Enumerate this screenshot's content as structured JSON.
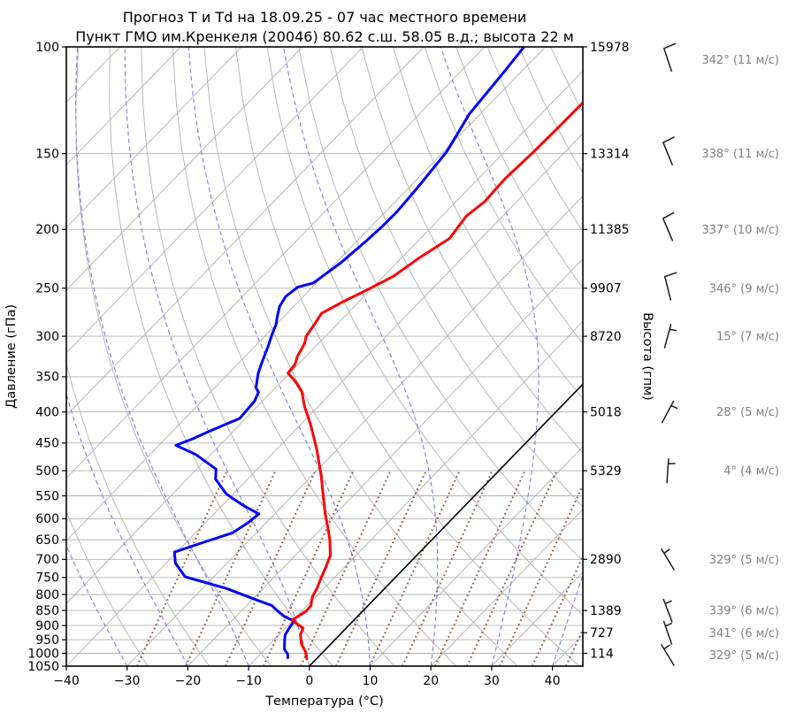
{
  "title": {
    "line1": "Прогноз Т и Td на 18.09.25 - 07 час местного времени",
    "line2": "Пункт ГМО им.Кренкеля (20046) 80.62 с.ш. 58.05 в.д.; высота 22 м"
  },
  "axes": {
    "x": {
      "label": "Температура (°C)",
      "min": -40,
      "max": 45,
      "ticks": [
        {
          "v": -40,
          "label": "−40"
        },
        {
          "v": -30,
          "label": "−30"
        },
        {
          "v": -20,
          "label": "−20"
        },
        {
          "v": -10,
          "label": "−10"
        },
        {
          "v": 0,
          "label": "0"
        },
        {
          "v": 10,
          "label": "10"
        },
        {
          "v": 20,
          "label": "20"
        },
        {
          "v": 30,
          "label": "30"
        },
        {
          "v": 40,
          "label": "40"
        }
      ]
    },
    "y_left": {
      "label": "Давление (гПа)",
      "ticks": [
        100,
        150,
        200,
        250,
        300,
        350,
        400,
        450,
        500,
        550,
        600,
        650,
        700,
        750,
        800,
        850,
        900,
        950,
        1000,
        1050
      ]
    },
    "y_right": {
      "label": "Высота (гпм)"
    }
  },
  "chart_data": {
    "type": "skewt-log-p",
    "pressure_range_hpa": [
      100,
      1050
    ],
    "temperature_range_c": [
      -40,
      45
    ],
    "skew": "isotherms slanted 45deg up-right",
    "temperature_profile": [
      [
        122,
        -44.9
      ],
      [
        135,
        -45.0
      ],
      [
        150,
        -45.2
      ],
      [
        165,
        -45.6
      ],
      [
        180,
        -45.3
      ],
      [
        190,
        -46.0
      ],
      [
        207,
        -45.2
      ],
      [
        223,
        -47.1
      ],
      [
        239,
        -48.4
      ],
      [
        253,
        -50.8
      ],
      [
        263,
        -52.6
      ],
      [
        275,
        -54.3
      ],
      [
        285,
        -53.8
      ],
      [
        300,
        -53.2
      ],
      [
        308,
        -52.3
      ],
      [
        324,
        -51.4
      ],
      [
        334,
        -50.5
      ],
      [
        345,
        -50.3
      ],
      [
        355,
        -48.0
      ],
      [
        370,
        -45.1
      ],
      [
        392,
        -42.2
      ],
      [
        420,
        -38.3
      ],
      [
        460,
        -33.5
      ],
      [
        509,
        -28.5
      ],
      [
        556,
        -24.4
      ],
      [
        589,
        -21.7
      ],
      [
        620,
        -19.1
      ],
      [
        650,
        -16.8
      ],
      [
        690,
        -14.2
      ],
      [
        721,
        -13.1
      ],
      [
        753,
        -12.1
      ],
      [
        780,
        -11.2
      ],
      [
        806,
        -10.6
      ],
      [
        821,
        -10.0
      ],
      [
        834,
        -9.4
      ],
      [
        852,
        -9.3
      ],
      [
        882,
        -10.2
      ],
      [
        909,
        -7.1
      ],
      [
        932,
        -6.5
      ],
      [
        966,
        -4.8
      ],
      [
        993,
        -3.0
      ],
      [
        1021,
        -1.6
      ]
    ],
    "dewpoint_profile": [
      [
        100,
        -63.5
      ],
      [
        110,
        -62.8
      ],
      [
        129,
        -61.8
      ],
      [
        149,
        -59.5
      ],
      [
        170,
        -58.6
      ],
      [
        187,
        -58.1
      ],
      [
        198,
        -58.2
      ],
      [
        209,
        -58.5
      ],
      [
        227,
        -59.2
      ],
      [
        245,
        -60.5
      ],
      [
        249,
        -62.4
      ],
      [
        258,
        -62.9
      ],
      [
        268,
        -62.3
      ],
      [
        279,
        -61.0
      ],
      [
        287,
        -60.0
      ],
      [
        299,
        -59.0
      ],
      [
        312,
        -57.8
      ],
      [
        330,
        -56.4
      ],
      [
        345,
        -55.2
      ],
      [
        365,
        -53.2
      ],
      [
        371,
        -52.1
      ],
      [
        384,
        -51.3
      ],
      [
        410,
        -51.0
      ],
      [
        430,
        -53.9
      ],
      [
        443,
        -55.5
      ],
      [
        454,
        -57.2
      ],
      [
        470,
        -52.5
      ],
      [
        497,
        -46.8
      ],
      [
        516,
        -45.3
      ],
      [
        545,
        -41.3
      ],
      [
        557,
        -39.1
      ],
      [
        572,
        -36.2
      ],
      [
        589,
        -32.6
      ],
      [
        610,
        -33.0
      ],
      [
        633,
        -33.9
      ],
      [
        655,
        -37.0
      ],
      [
        681,
        -40.4
      ],
      [
        710,
        -38.5
      ],
      [
        748,
        -34.7
      ],
      [
        782,
        -26.0
      ],
      [
        817,
        -19.2
      ],
      [
        834,
        -15.9
      ],
      [
        852,
        -14.0
      ],
      [
        870,
        -12.0
      ],
      [
        885,
        -9.7
      ],
      [
        909,
        -9.4
      ],
      [
        932,
        -9.0
      ],
      [
        952,
        -8.2
      ],
      [
        985,
        -6.8
      ],
      [
        1003,
        -5.5
      ],
      [
        1017,
        -4.9
      ]
    ],
    "winds": [
      {
        "p": 105,
        "dir": 342,
        "speed": 11,
        "label": "342° (11 м/с)"
      },
      {
        "p": 150,
        "dir": 338,
        "speed": 11,
        "label": "338° (11 м/с)"
      },
      {
        "p": 200,
        "dir": 337,
        "speed": 10,
        "label": "337° (10 м/с)"
      },
      {
        "p": 250,
        "dir": 346,
        "speed": 9,
        "label": "346° (9 м/с)"
      },
      {
        "p": 300,
        "dir": 15,
        "speed": 7,
        "label": "15° (7 м/с)"
      },
      {
        "p": 400,
        "dir": 28,
        "speed": 5,
        "label": "28° (5 м/с)"
      },
      {
        "p": 500,
        "dir": 4,
        "speed": 4,
        "label": "4° (4 м/с)"
      },
      {
        "p": 700,
        "dir": 329,
        "speed": 5,
        "label": "329° (5 м/с)"
      },
      {
        "p": 850,
        "dir": 339,
        "speed": 6,
        "label": "339° (6 м/с)"
      },
      {
        "p": 925,
        "dir": 341,
        "speed": 6,
        "label": "341° (6 м/с)"
      },
      {
        "p": 1007,
        "dir": 329,
        "speed": 5,
        "label": "329° (5 м/с)"
      }
    ],
    "heights": [
      {
        "p": 100,
        "label": "15978"
      },
      {
        "p": 150,
        "label": "13314"
      },
      {
        "p": 200,
        "label": "11385"
      },
      {
        "p": 250,
        "label": "9907"
      },
      {
        "p": 300,
        "label": "8720"
      },
      {
        "p": 400,
        "label": "5018"
      },
      {
        "p": 500,
        "label": "5329"
      },
      {
        "p": 700,
        "label": "2890"
      },
      {
        "p": 850,
        "label": "1389"
      },
      {
        "p": 925,
        "label": "727"
      },
      {
        "p": 1000,
        "label": "114"
      }
    ],
    "grid": {
      "isobar_step_hpa": 50,
      "isotherm_step_c": 10,
      "isotherm_min_c": -140,
      "isotherm_max_c": 40,
      "dry_adiabat_theta_c": [
        -30,
        -20,
        -10,
        0,
        10,
        20,
        30,
        40,
        50,
        60,
        70,
        80,
        90,
        100,
        110,
        120,
        130,
        140,
        150
      ],
      "moist_adiabat_start_temps_c": [
        -40,
        -30,
        -20,
        -10,
        0,
        10,
        20,
        30,
        40
      ],
      "mixing_ratio_bottom_x": [
        155,
        210,
        255,
        298,
        340,
        380,
        418,
        455,
        492,
        528,
        565,
        602,
        640
      ],
      "mixing_ratio_top_pressure_hpa": 500
    }
  },
  "colors": {
    "temperature": "#ff0000",
    "dewpoint": "#0000ff",
    "grid": "#b0b0b0",
    "moist_adiabat": "#7a7ae8",
    "mixing_ratio": "#8b5742",
    "zero_isotherm": "#000000",
    "frame": "#000000",
    "wind_barb": "#1a1a1a",
    "wind_text": "#7f7f7f",
    "text": "#000000"
  }
}
